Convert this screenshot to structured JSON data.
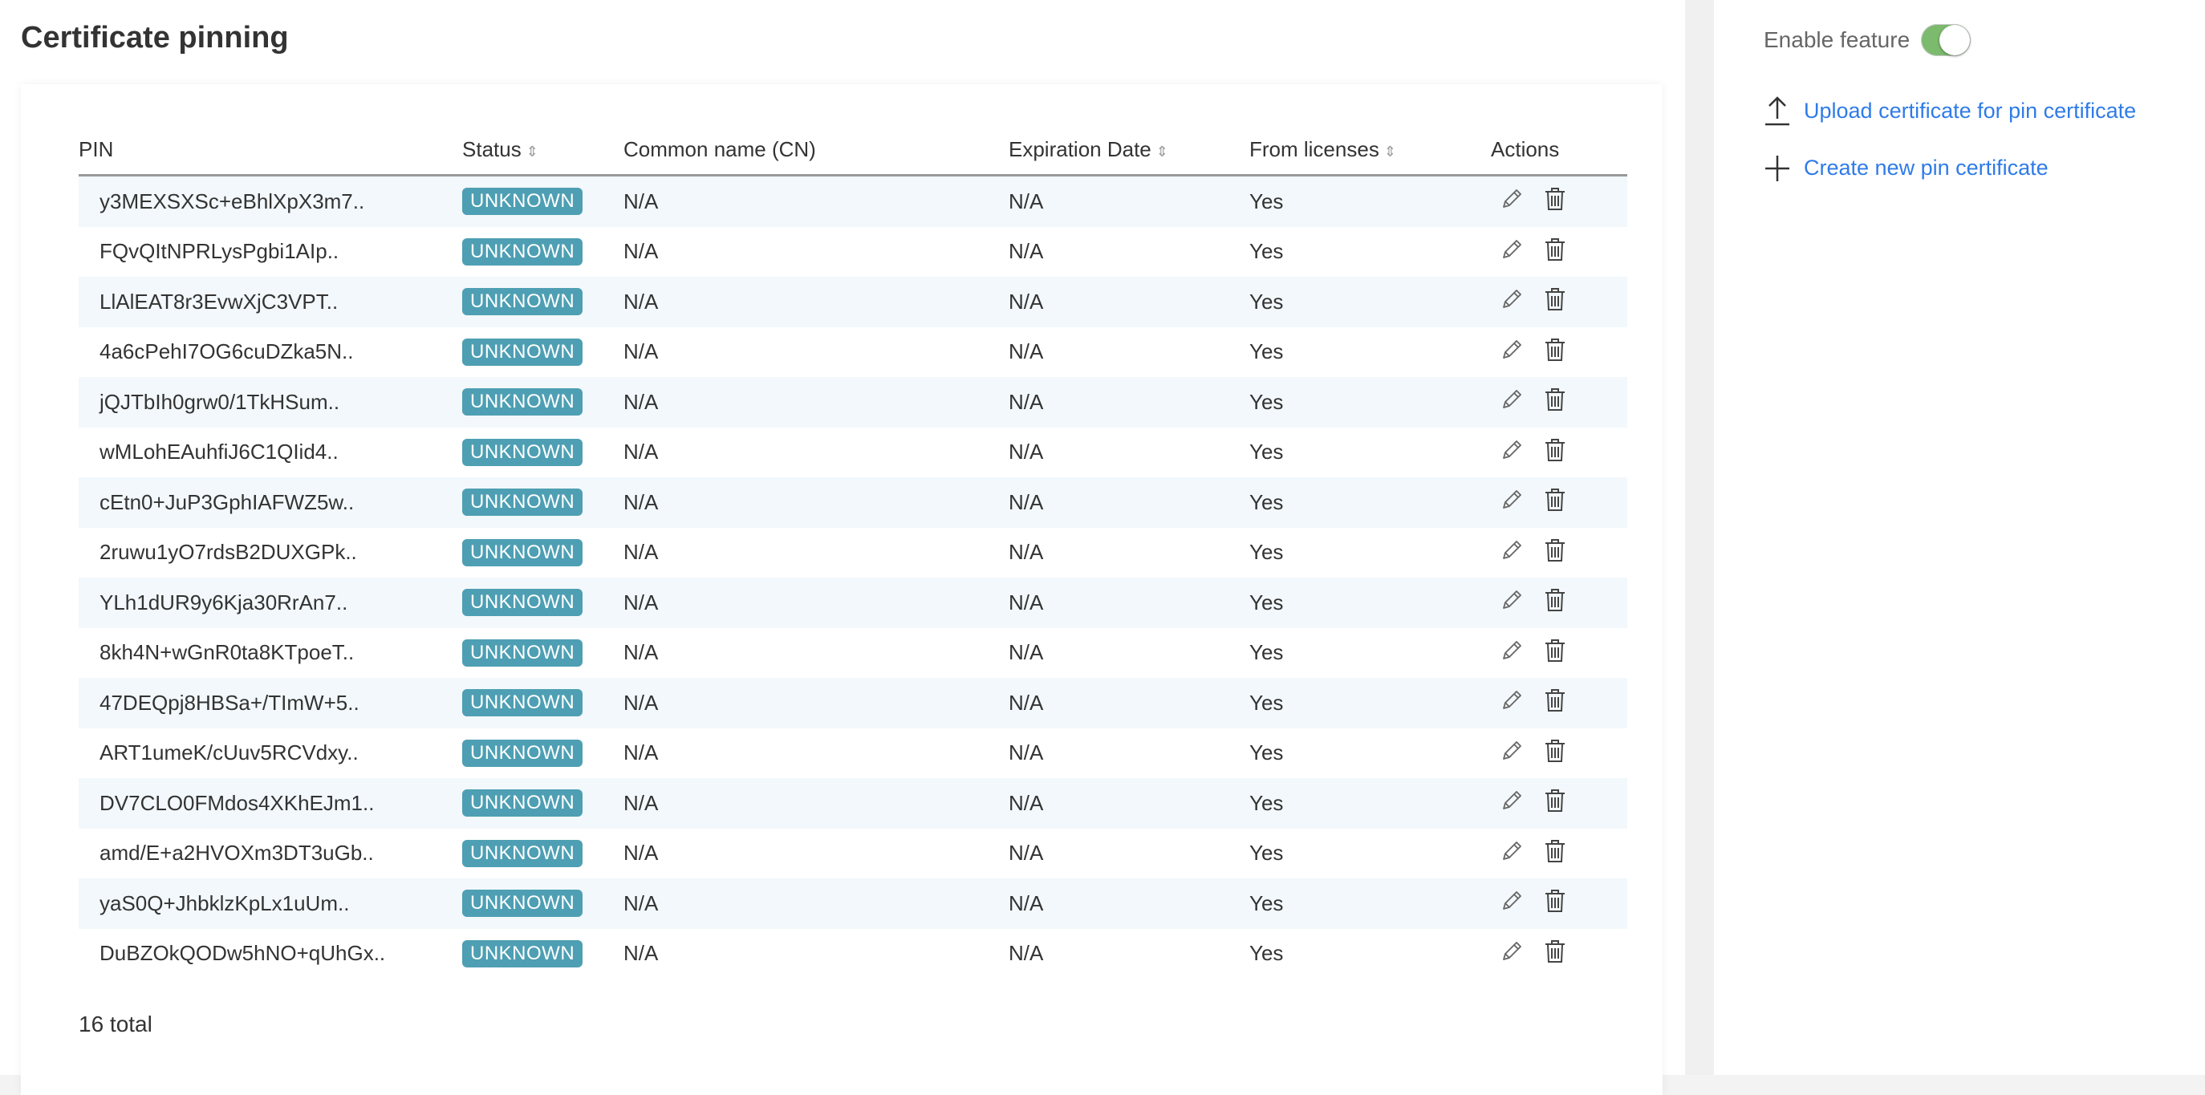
{
  "page": {
    "title": "Certificate pinning"
  },
  "table": {
    "headers": {
      "pin": "PIN",
      "status": "Status",
      "cn": "Common name (CN)",
      "expiration": "Expiration Date",
      "from_licenses": "From licenses",
      "actions": "Actions"
    },
    "sortable": [
      "status",
      "expiration",
      "from_licenses"
    ],
    "rows": [
      {
        "pin": "y3MEXSXSc+eBhlXpX3m7..",
        "status": "UNKNOWN",
        "cn": "N/A",
        "expiration": "N/A",
        "from_licenses": "Yes"
      },
      {
        "pin": "FQvQItNPRLysPgbi1AIp..",
        "status": "UNKNOWN",
        "cn": "N/A",
        "expiration": "N/A",
        "from_licenses": "Yes"
      },
      {
        "pin": "LlAlEAT8r3EvwXjC3VPT..",
        "status": "UNKNOWN",
        "cn": "N/A",
        "expiration": "N/A",
        "from_licenses": "Yes"
      },
      {
        "pin": "4a6cPehI7OG6cuDZka5N..",
        "status": "UNKNOWN",
        "cn": "N/A",
        "expiration": "N/A",
        "from_licenses": "Yes"
      },
      {
        "pin": "jQJTbIh0grw0/1TkHSum..",
        "status": "UNKNOWN",
        "cn": "N/A",
        "expiration": "N/A",
        "from_licenses": "Yes"
      },
      {
        "pin": "wMLohEAuhfiJ6C1QIid4..",
        "status": "UNKNOWN",
        "cn": "N/A",
        "expiration": "N/A",
        "from_licenses": "Yes"
      },
      {
        "pin": "cEtn0+JuP3GphIAFWZ5w..",
        "status": "UNKNOWN",
        "cn": "N/A",
        "expiration": "N/A",
        "from_licenses": "Yes"
      },
      {
        "pin": "2ruwu1yO7rdsB2DUXGPk..",
        "status": "UNKNOWN",
        "cn": "N/A",
        "expiration": "N/A",
        "from_licenses": "Yes"
      },
      {
        "pin": "YLh1dUR9y6Kja30RrAn7..",
        "status": "UNKNOWN",
        "cn": "N/A",
        "expiration": "N/A",
        "from_licenses": "Yes"
      },
      {
        "pin": "8kh4N+wGnR0ta8KTpoeT..",
        "status": "UNKNOWN",
        "cn": "N/A",
        "expiration": "N/A",
        "from_licenses": "Yes"
      },
      {
        "pin": "47DEQpj8HBSa+/TImW+5..",
        "status": "UNKNOWN",
        "cn": "N/A",
        "expiration": "N/A",
        "from_licenses": "Yes"
      },
      {
        "pin": "ART1umeK/cUuv5RCVdxy..",
        "status": "UNKNOWN",
        "cn": "N/A",
        "expiration": "N/A",
        "from_licenses": "Yes"
      },
      {
        "pin": "DV7CLO0FMdos4XKhEJm1..",
        "status": "UNKNOWN",
        "cn": "N/A",
        "expiration": "N/A",
        "from_licenses": "Yes"
      },
      {
        "pin": "amd/E+a2HVOXm3DT3uGb..",
        "status": "UNKNOWN",
        "cn": "N/A",
        "expiration": "N/A",
        "from_licenses": "Yes"
      },
      {
        "pin": "yaS0Q+JhbklzKpLx1uUm..",
        "status": "UNKNOWN",
        "cn": "N/A",
        "expiration": "N/A",
        "from_licenses": "Yes"
      },
      {
        "pin": "DuBZOkQODw5hNO+qUhGx..",
        "status": "UNKNOWN",
        "cn": "N/A",
        "expiration": "N/A",
        "from_licenses": "Yes"
      }
    ],
    "row_action_icons": [
      "pencil-icon",
      "trash-icon"
    ],
    "total": "16 total"
  },
  "sidebar": {
    "enable_label": "Enable feature",
    "enabled": true,
    "upload_label": "Upload certificate for pin certificate",
    "create_label": "Create new pin certificate"
  },
  "colors": {
    "badge": "#4e9fb3",
    "toggle_on": "#7cba6e",
    "link": "#2f7be8",
    "row_stripe": "#f2f8fb"
  }
}
